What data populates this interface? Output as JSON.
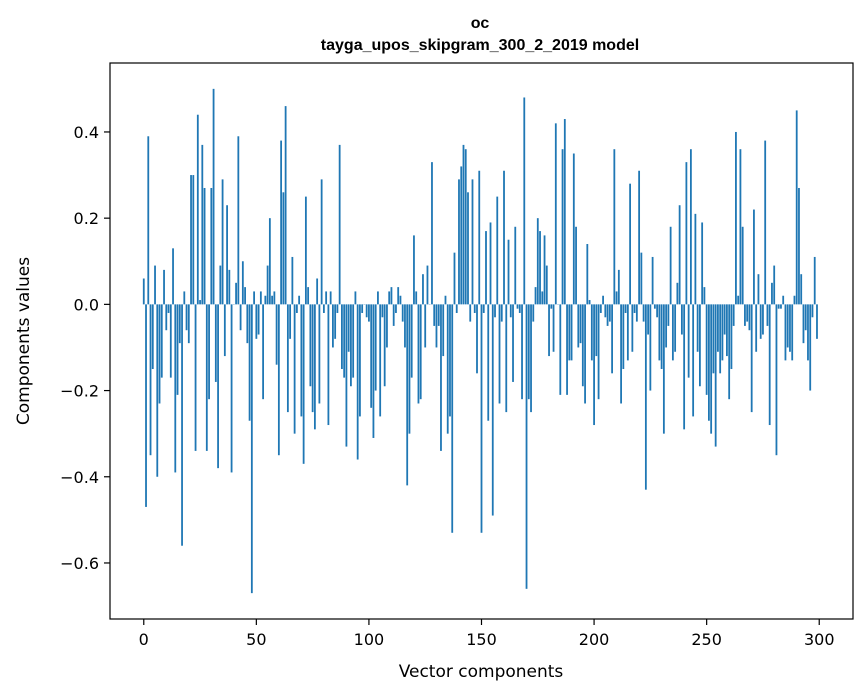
{
  "chart_data": {
    "type": "bar",
    "title": "ос",
    "subtitle": "tayga_upos_skipgram_300_2_2019 model",
    "xlabel": "Vector components",
    "ylabel": "Components values",
    "xlim": [
      -15,
      315
    ],
    "ylim": [
      -0.73,
      0.56
    ],
    "xticks": [
      0,
      50,
      100,
      150,
      200,
      250,
      300
    ],
    "xtick_labels": [
      "0",
      "50",
      "100",
      "150",
      "200",
      "250",
      "300"
    ],
    "yticks": [
      -0.6,
      -0.4,
      -0.2,
      0.0,
      0.2,
      0.4
    ],
    "ytick_labels": [
      "−0.6",
      "−0.4",
      "−0.2",
      "0.0",
      "0.2",
      "0.4"
    ],
    "bar_color": "#1f77b4",
    "grid": false,
    "values": [
      0.06,
      -0.47,
      0.39,
      -0.35,
      -0.15,
      0.09,
      -0.4,
      -0.23,
      -0.17,
      0.08,
      -0.06,
      -0.02,
      -0.17,
      0.13,
      -0.39,
      -0.21,
      -0.09,
      -0.56,
      0.03,
      -0.06,
      -0.09,
      0.3,
      0.3,
      -0.34,
      0.44,
      0.01,
      0.37,
      0.27,
      -0.34,
      -0.22,
      0.27,
      0.5,
      -0.18,
      -0.38,
      0.09,
      0.29,
      -0.12,
      0.23,
      0.08,
      -0.39,
      0.0,
      0.05,
      0.39,
      -0.06,
      0.1,
      0.04,
      -0.09,
      -0.27,
      -0.67,
      0.03,
      -0.08,
      -0.07,
      0.03,
      -0.22,
      0.02,
      0.09,
      0.2,
      0.02,
      0.03,
      -0.14,
      -0.35,
      0.38,
      0.26,
      0.46,
      -0.25,
      -0.08,
      0.11,
      -0.3,
      -0.02,
      0.02,
      -0.26,
      -0.37,
      0.25,
      0.04,
      -0.19,
      -0.25,
      -0.29,
      0.06,
      -0.23,
      0.29,
      -0.02,
      0.03,
      -0.28,
      0.03,
      -0.1,
      -0.08,
      -0.02,
      0.37,
      -0.15,
      -0.17,
      -0.33,
      -0.11,
      -0.19,
      -0.17,
      0.03,
      -0.36,
      -0.26,
      -0.02,
      0.0,
      -0.03,
      -0.04,
      -0.24,
      -0.31,
      -0.2,
      0.03,
      -0.26,
      -0.03,
      -0.19,
      -0.1,
      0.03,
      0.04,
      -0.05,
      -0.02,
      0.04,
      0.02,
      -0.04,
      -0.1,
      -0.42,
      -0.3,
      -0.17,
      0.16,
      0.03,
      -0.23,
      -0.22,
      0.07,
      -0.1,
      0.09,
      0.0,
      0.33,
      -0.05,
      -0.1,
      -0.05,
      -0.34,
      -0.12,
      0.02,
      -0.3,
      -0.26,
      -0.53,
      0.12,
      -0.02,
      0.29,
      0.32,
      0.37,
      0.36,
      0.26,
      -0.04,
      0.29,
      -0.02,
      -0.16,
      0.31,
      -0.53,
      -0.02,
      0.17,
      -0.27,
      0.19,
      -0.49,
      -0.03,
      0.25,
      -0.23,
      -0.04,
      0.31,
      -0.25,
      0.15,
      -0.03,
      -0.18,
      0.18,
      -0.01,
      -0.02,
      -0.22,
      0.48,
      -0.66,
      -0.22,
      -0.25,
      -0.04,
      0.04,
      0.2,
      0.17,
      0.03,
      0.16,
      0.09,
      -0.12,
      -0.01,
      -0.11,
      0.42,
      0.0,
      -0.21,
      0.36,
      0.43,
      -0.21,
      -0.13,
      -0.13,
      0.35,
      0.18,
      -0.1,
      -0.09,
      -0.19,
      -0.23,
      0.14,
      0.01,
      -0.13,
      -0.28,
      -0.12,
      -0.22,
      -0.02,
      0.02,
      -0.03,
      -0.05,
      -0.04,
      -0.16,
      0.36,
      0.03,
      0.08,
      -0.23,
      -0.15,
      -0.02,
      -0.13,
      0.28,
      -0.11,
      -0.02,
      -0.04,
      0.31,
      0.12,
      -0.04,
      -0.43,
      -0.07,
      -0.2,
      0.11,
      -0.01,
      -0.03,
      -0.13,
      -0.15,
      -0.3,
      -0.1,
      -0.05,
      0.18,
      -0.13,
      -0.11,
      0.05,
      0.23,
      -0.07,
      -0.29,
      0.33,
      -0.17,
      0.36,
      -0.26,
      0.21,
      -0.11,
      -0.19,
      0.19,
      0.04,
      -0.21,
      -0.27,
      -0.3,
      -0.16,
      -0.33,
      -0.11,
      -0.16,
      -0.13,
      -0.07,
      -0.12,
      -0.22,
      -0.15,
      -0.05,
      0.4,
      0.02,
      0.36,
      0.18,
      -0.05,
      -0.04,
      -0.06,
      -0.25,
      0.22,
      -0.11,
      0.07,
      -0.08,
      -0.07,
      0.38,
      -0.05,
      -0.28,
      0.05,
      0.09,
      -0.35,
      -0.01,
      -0.01,
      0.02,
      -0.13,
      -0.1,
      -0.11,
      -0.13,
      0.02,
      0.45,
      0.27,
      0.07,
      -0.09,
      -0.06,
      -0.13,
      -0.2,
      -0.03,
      0.11,
      -0.08
    ]
  }
}
